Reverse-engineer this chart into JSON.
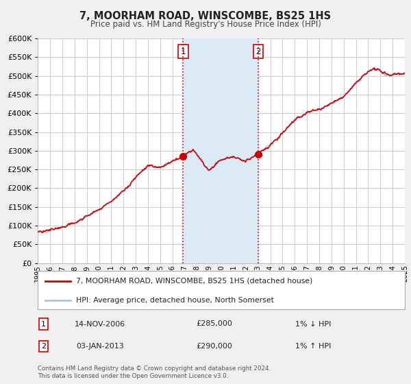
{
  "title": "7, MOORHAM ROAD, WINSCOMBE, BS25 1HS",
  "subtitle": "Price paid vs. HM Land Registry's House Price Index (HPI)",
  "legend_line1": "7, MOORHAM ROAD, WINSCOMBE, BS25 1HS (detached house)",
  "legend_line2": "HPI: Average price, detached house, North Somerset",
  "sale1_label": "1",
  "sale1_date": "14-NOV-2006",
  "sale1_price": "£285,000",
  "sale1_hpi": "1% ↓ HPI",
  "sale2_label": "2",
  "sale2_date": "03-JAN-2013",
  "sale2_price": "£290,000",
  "sale2_hpi": "1% ↑ HPI",
  "footnote": "Contains HM Land Registry data © Crown copyright and database right 2024.\nThis data is licensed under the Open Government Licence v3.0.",
  "hpi_color": "#a8c8e8",
  "price_color": "#cc0000",
  "sale_marker_color": "#cc0000",
  "shade_color": "#daeaf7",
  "dashed_line_color": "#cc0000",
  "ylim": [
    0,
    600000
  ],
  "yticks": [
    0,
    50000,
    100000,
    150000,
    200000,
    250000,
    300000,
    350000,
    400000,
    450000,
    500000,
    550000,
    600000
  ],
  "sale1_year": 2006.88,
  "sale1_value": 285000,
  "sale2_year": 2013.01,
  "sale2_value": 290000,
  "background_color": "#f0f0f0",
  "plot_bg_color": "#ffffff",
  "grid_color": "#cccccc"
}
